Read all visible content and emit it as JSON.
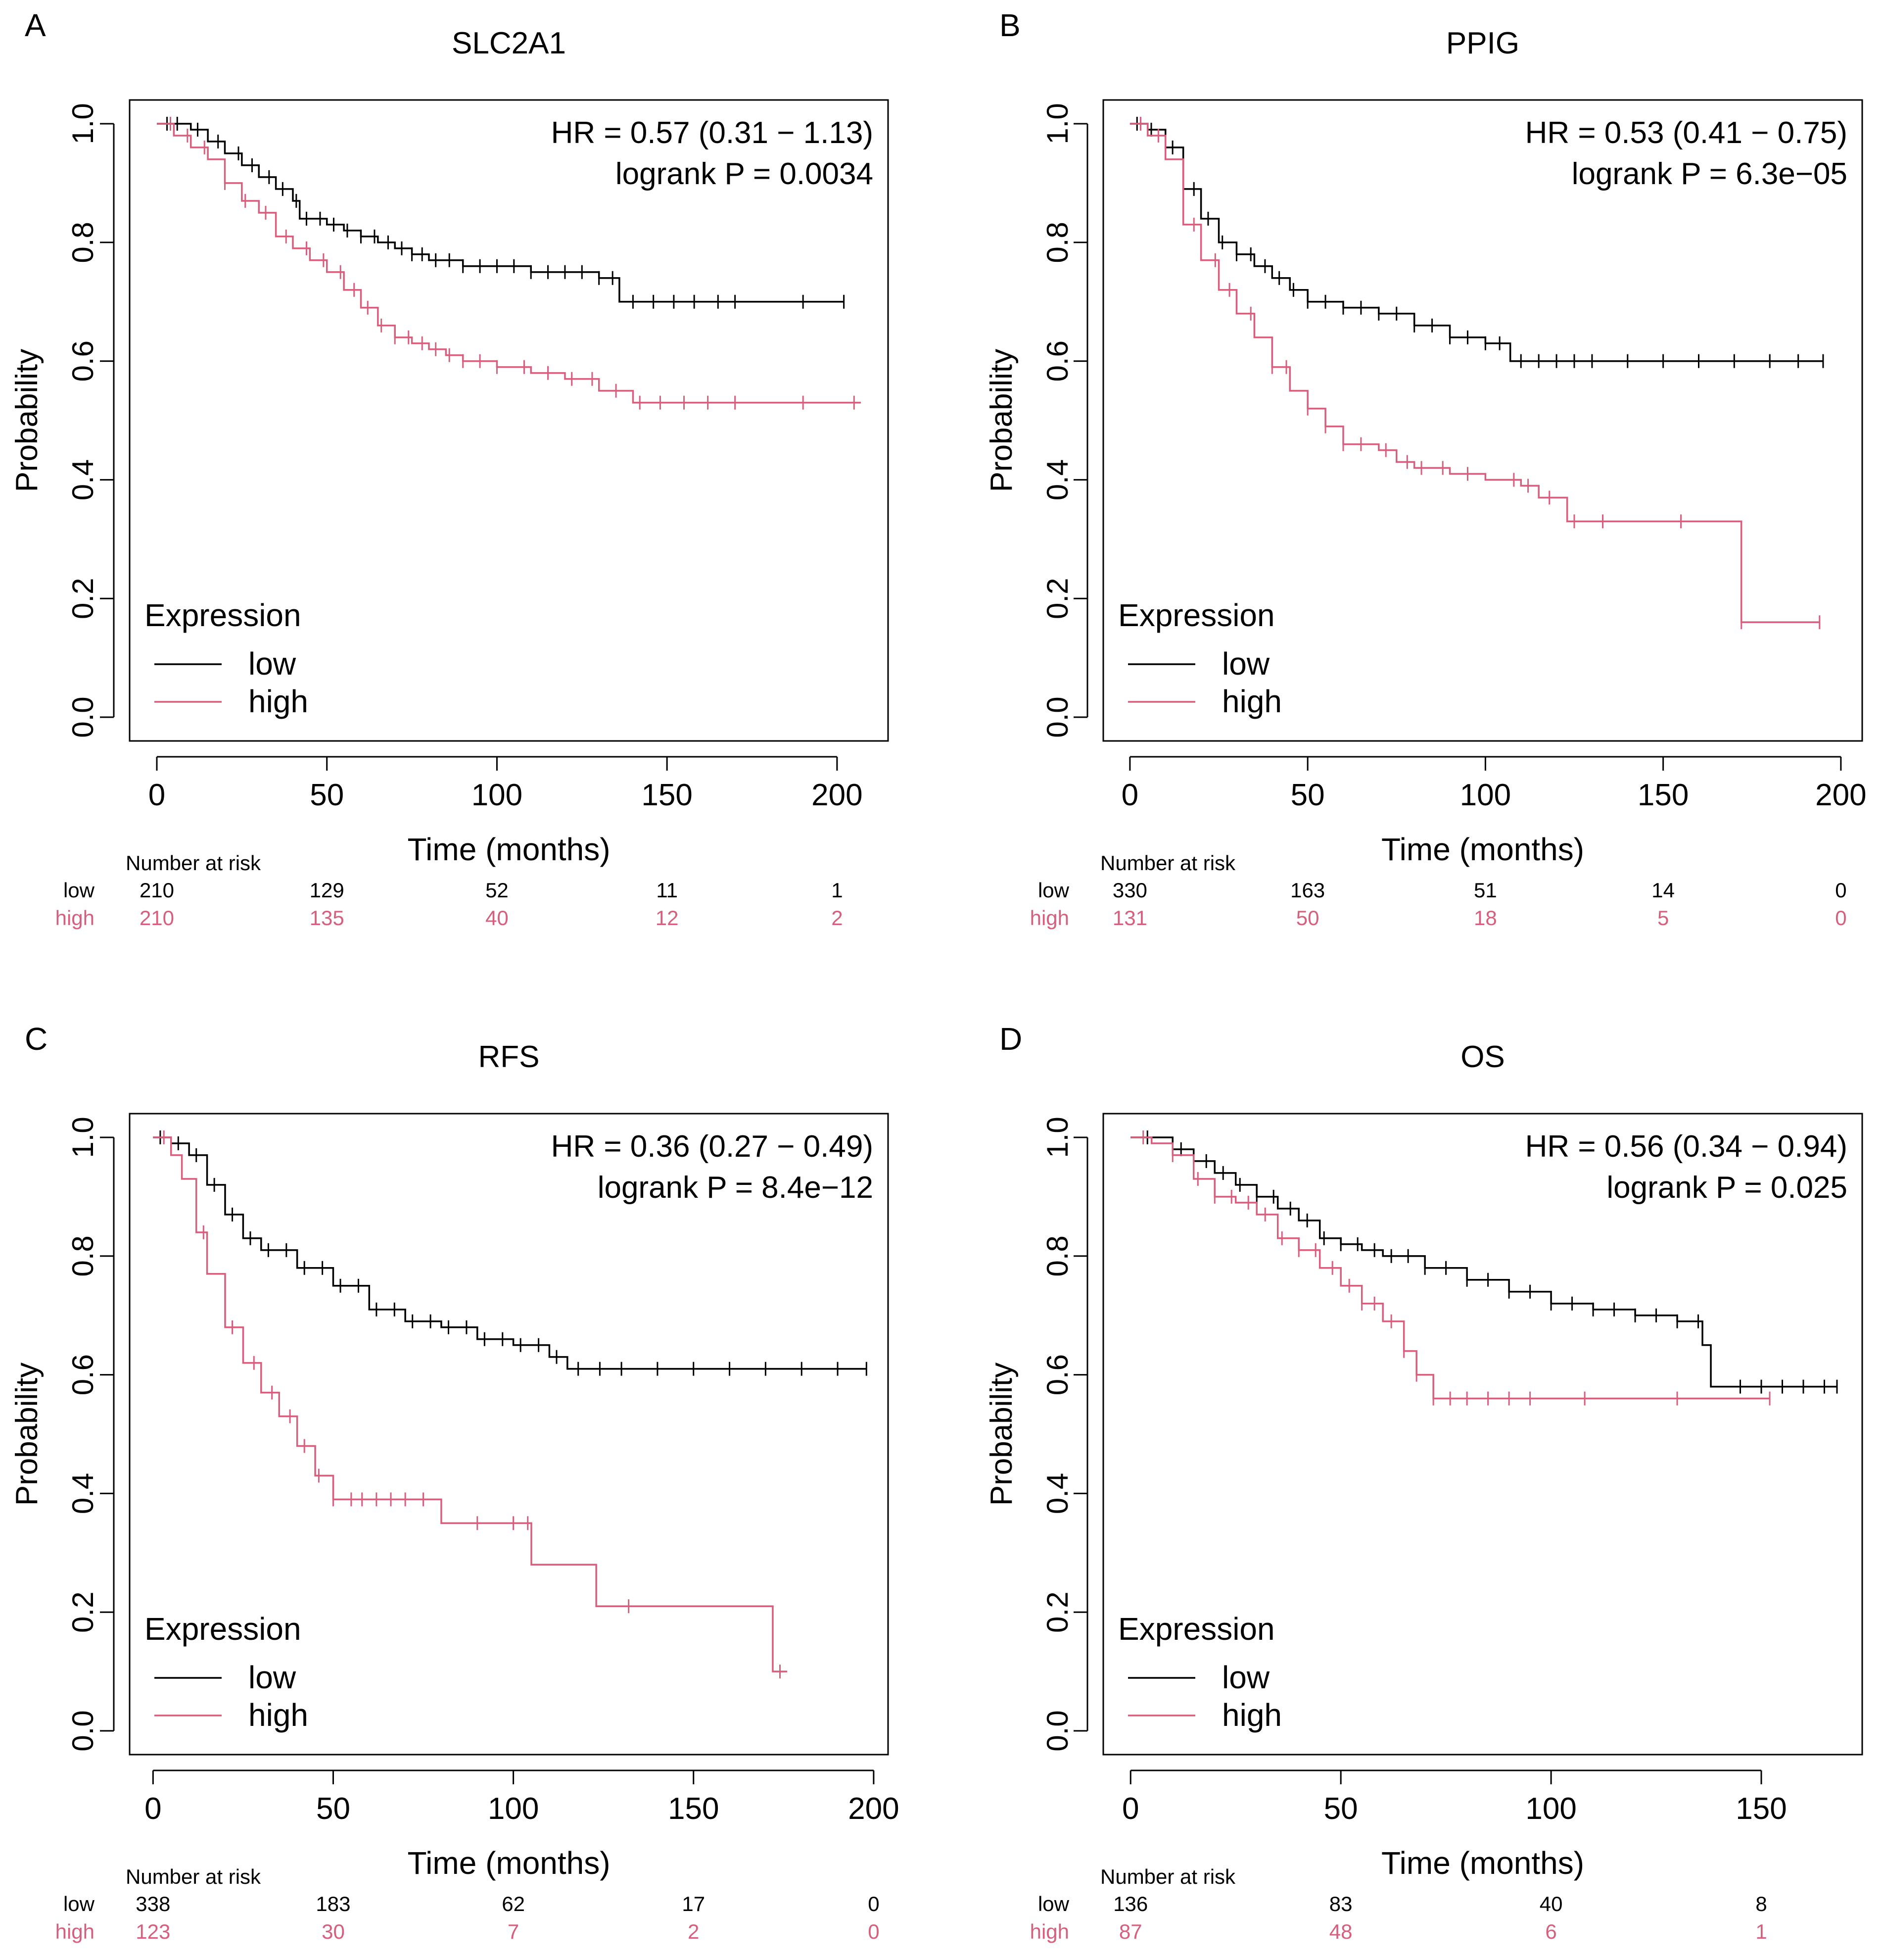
{
  "figure": {
    "colors": {
      "low": "#000000",
      "high": "#d5607e",
      "axis": "#000000"
    },
    "number_at_risk_label": "Number at risk",
    "legend_title": "Expression",
    "legend_low": "low",
    "legend_high": "high"
  },
  "chart_data": [
    {
      "type": "line",
      "panel_label": "A",
      "title": "SLC2A1",
      "xlabel": "Time (months)",
      "ylabel": "Probability",
      "xlim": [
        -8,
        215
      ],
      "ylim": [
        -0.04,
        1.04
      ],
      "x_ticks": [
        0,
        50,
        100,
        150,
        200
      ],
      "x_tick_labels": [
        "0",
        "50",
        "100",
        "150",
        "200"
      ],
      "y_ticks": [
        0.0,
        0.2,
        0.4,
        0.6,
        0.8,
        1.0
      ],
      "y_tick_labels": [
        "0.0",
        "0.2",
        "0.4",
        "0.6",
        "0.8",
        "1.0"
      ],
      "hr_text": "HR = 0.57 (0.31 − 1.13)",
      "p_text": "logrank P = 0.0034",
      "series": [
        {
          "name": "low",
          "color": "#000000",
          "x": [
            0,
            5,
            10,
            15,
            20,
            25,
            30,
            35,
            40,
            42,
            50,
            55,
            60,
            65,
            70,
            75,
            80,
            90,
            100,
            110,
            120,
            130,
            136,
            140,
            150,
            160,
            170,
            180,
            190,
            202
          ],
          "y": [
            1.0,
            1.0,
            0.99,
            0.97,
            0.95,
            0.93,
            0.91,
            0.89,
            0.87,
            0.84,
            0.83,
            0.82,
            0.81,
            0.8,
            0.79,
            0.78,
            0.77,
            0.76,
            0.76,
            0.75,
            0.75,
            0.74,
            0.7,
            0.7,
            0.7,
            0.7,
            0.7,
            0.7,
            0.7,
            0.7
          ],
          "censor_x": [
            3,
            6,
            12,
            18,
            24,
            28,
            33,
            37,
            41,
            44,
            48,
            52,
            56,
            60,
            64,
            68,
            72,
            75,
            78,
            82,
            86,
            90,
            95,
            100,
            105,
            110,
            115,
            120,
            125,
            130,
            134,
            140,
            146,
            152,
            158,
            165,
            170,
            190,
            202
          ]
        },
        {
          "name": "high",
          "color": "#d5607e",
          "x": [
            0,
            5,
            10,
            15,
            20,
            25,
            30,
            35,
            40,
            45,
            50,
            55,
            60,
            65,
            70,
            75,
            80,
            85,
            90,
            100,
            110,
            120,
            130,
            140,
            150,
            160,
            170,
            180,
            190,
            207
          ],
          "y": [
            1.0,
            0.98,
            0.96,
            0.94,
            0.9,
            0.87,
            0.85,
            0.81,
            0.79,
            0.77,
            0.75,
            0.72,
            0.69,
            0.66,
            0.64,
            0.63,
            0.62,
            0.61,
            0.6,
            0.59,
            0.58,
            0.57,
            0.55,
            0.53,
            0.53,
            0.53,
            0.53,
            0.53,
            0.53,
            0.53
          ],
          "censor_x": [
            4,
            9,
            14,
            20,
            26,
            32,
            38,
            44,
            49,
            54,
            58,
            62,
            66,
            70,
            74,
            78,
            82,
            86,
            90,
            95,
            100,
            108,
            115,
            122,
            128,
            135,
            142,
            148,
            155,
            162,
            170,
            190,
            205
          ]
        }
      ],
      "risk_table": {
        "x": [
          0,
          50,
          100,
          150,
          200
        ],
        "rows": [
          {
            "label": "low",
            "values": [
              "210",
              "129",
              "52",
              "11",
              "1"
            ]
          },
          {
            "label": "high",
            "values": [
              "210",
              "135",
              "40",
              "12",
              "2"
            ]
          }
        ]
      }
    },
    {
      "type": "line",
      "panel_label": "B",
      "title": "PPIG",
      "xlabel": "Time (months)",
      "ylabel": "Probability",
      "xlim": [
        -7.5,
        206
      ],
      "ylim": [
        -0.04,
        1.04
      ],
      "x_ticks": [
        0,
        50,
        100,
        150,
        200
      ],
      "x_tick_labels": [
        "0",
        "50",
        "100",
        "150",
        "200"
      ],
      "y_ticks": [
        0.0,
        0.2,
        0.4,
        0.6,
        0.8,
        1.0
      ],
      "y_tick_labels": [
        "0.0",
        "0.2",
        "0.4",
        "0.6",
        "0.8",
        "1.0"
      ],
      "hr_text": "HR = 0.53 (0.41 − 0.75)",
      "p_text": "logrank P = 6.3e−05",
      "series": [
        {
          "name": "low",
          "color": "#000000",
          "x": [
            0,
            5,
            10,
            15,
            20,
            25,
            30,
            35,
            40,
            45,
            50,
            60,
            70,
            80,
            90,
            100,
            107,
            120,
            140,
            160,
            180,
            195
          ],
          "y": [
            1.0,
            0.99,
            0.96,
            0.89,
            0.84,
            0.8,
            0.78,
            0.76,
            0.74,
            0.72,
            0.7,
            0.69,
            0.68,
            0.66,
            0.64,
            0.63,
            0.6,
            0.6,
            0.6,
            0.6,
            0.6,
            0.6
          ],
          "censor_x": [
            2,
            6,
            12,
            18,
            22,
            26,
            30,
            34,
            38,
            42,
            46,
            50,
            55,
            60,
            65,
            70,
            75,
            80,
            85,
            90,
            95,
            100,
            104,
            110,
            115,
            120,
            125,
            130,
            140,
            150,
            160,
            170,
            180,
            188,
            195
          ]
        },
        {
          "name": "high",
          "color": "#d5607e",
          "x": [
            0,
            5,
            10,
            15,
            20,
            25,
            30,
            35,
            40,
            45,
            50,
            55,
            60,
            70,
            75,
            80,
            90,
            100,
            110,
            115,
            123,
            140,
            150,
            160,
            172,
            194
          ],
          "y": [
            1.0,
            0.98,
            0.94,
            0.83,
            0.77,
            0.72,
            0.68,
            0.64,
            0.59,
            0.55,
            0.52,
            0.49,
            0.46,
            0.45,
            0.43,
            0.42,
            0.41,
            0.4,
            0.39,
            0.37,
            0.33,
            0.33,
            0.33,
            0.33,
            0.16,
            0.16
          ],
          "censor_x": [
            3,
            8,
            18,
            24,
            28,
            34,
            40,
            44,
            50,
            55,
            60,
            65,
            72,
            78,
            82,
            88,
            95,
            108,
            112,
            118,
            125,
            133,
            155,
            172,
            194
          ]
        }
      ],
      "risk_table": {
        "x": [
          0,
          50,
          100,
          150,
          200
        ],
        "rows": [
          {
            "label": "low",
            "values": [
              "330",
              "163",
              "51",
              "14",
              "0"
            ]
          },
          {
            "label": "high",
            "values": [
              "131",
              "50",
              "18",
              "5",
              "0"
            ]
          }
        ]
      }
    },
    {
      "type": "line",
      "panel_label": "C",
      "title": "RFS",
      "xlabel": "Time (months)",
      "ylabel": "Probability",
      "xlim": [
        -6.5,
        204
      ],
      "ylim": [
        -0.04,
        1.04
      ],
      "x_ticks": [
        0,
        50,
        100,
        150,
        200
      ],
      "x_tick_labels": [
        "0",
        "50",
        "100",
        "150",
        "200"
      ],
      "y_ticks": [
        0.0,
        0.2,
        0.4,
        0.6,
        0.8,
        1.0
      ],
      "y_tick_labels": [
        "0.0",
        "0.2",
        "0.4",
        "0.6",
        "0.8",
        "1.0"
      ],
      "hr_text": "HR = 0.36 (0.27 − 0.49)",
      "p_text": "logrank P = 8.4e−12",
      "series": [
        {
          "name": "low",
          "color": "#000000",
          "x": [
            0,
            5,
            10,
            15,
            20,
            25,
            30,
            40,
            50,
            60,
            70,
            80,
            90,
            100,
            110,
            115,
            120,
            140,
            160,
            180,
            198
          ],
          "y": [
            1.0,
            0.99,
            0.97,
            0.92,
            0.87,
            0.83,
            0.81,
            0.78,
            0.75,
            0.71,
            0.69,
            0.68,
            0.66,
            0.65,
            0.63,
            0.61,
            0.61,
            0.61,
            0.61,
            0.61,
            0.61
          ],
          "censor_x": [
            2,
            7,
            12,
            17,
            22,
            27,
            32,
            37,
            42,
            47,
            52,
            57,
            62,
            67,
            72,
            77,
            82,
            87,
            92,
            97,
            102,
            107,
            112,
            118,
            124,
            130,
            140,
            150,
            160,
            170,
            180,
            190,
            198
          ]
        },
        {
          "name": "high",
          "color": "#d5607e",
          "x": [
            0,
            5,
            8,
            12,
            15,
            20,
            25,
            30,
            35,
            40,
            45,
            50,
            60,
            70,
            80,
            90,
            100,
            105,
            115,
            123,
            140,
            155,
            172,
            176
          ],
          "y": [
            1.0,
            0.97,
            0.93,
            0.84,
            0.77,
            0.68,
            0.62,
            0.57,
            0.53,
            0.48,
            0.43,
            0.39,
            0.39,
            0.39,
            0.35,
            0.35,
            0.35,
            0.28,
            0.28,
            0.21,
            0.21,
            0.21,
            0.1,
            0.1
          ],
          "censor_x": [
            3,
            14,
            22,
            28,
            33,
            38,
            42,
            46,
            50,
            55,
            58,
            62,
            66,
            70,
            75,
            90,
            100,
            104,
            132,
            174
          ]
        }
      ],
      "risk_table": {
        "x": [
          0,
          50,
          100,
          150,
          200
        ],
        "rows": [
          {
            "label": "low",
            "values": [
              "338",
              "183",
              "62",
              "17",
              "0"
            ]
          },
          {
            "label": "high",
            "values": [
              "123",
              "30",
              "7",
              "2",
              "0"
            ]
          }
        ]
      }
    },
    {
      "type": "line",
      "panel_label": "D",
      "title": "OS",
      "xlabel": "Time (months)",
      "ylabel": "Probability",
      "xlim": [
        -6.5,
        174
      ],
      "ylim": [
        -0.04,
        1.04
      ],
      "x_ticks": [
        0,
        50,
        100,
        150
      ],
      "x_tick_labels": [
        "0",
        "50",
        "100",
        "150"
      ],
      "y_ticks": [
        0.0,
        0.2,
        0.4,
        0.6,
        0.8,
        1.0
      ],
      "y_tick_labels": [
        "0.0",
        "0.2",
        "0.4",
        "0.6",
        "0.8",
        "1.0"
      ],
      "hr_text": "HR = 0.56 (0.34 − 0.94)",
      "p_text": "logrank P = 0.025",
      "series": [
        {
          "name": "low",
          "color": "#000000",
          "x": [
            0,
            5,
            10,
            15,
            20,
            25,
            30,
            35,
            40,
            45,
            50,
            55,
            60,
            70,
            80,
            90,
            100,
            110,
            120,
            130,
            136,
            138,
            150,
            160,
            168
          ],
          "y": [
            1.0,
            1.0,
            0.98,
            0.96,
            0.94,
            0.92,
            0.9,
            0.88,
            0.86,
            0.83,
            0.82,
            0.81,
            0.8,
            0.78,
            0.76,
            0.74,
            0.72,
            0.71,
            0.7,
            0.69,
            0.65,
            0.58,
            0.58,
            0.58,
            0.58
          ],
          "censor_x": [
            4,
            12,
            18,
            22,
            26,
            30,
            34,
            38,
            42,
            46,
            50,
            54,
            58,
            62,
            66,
            70,
            75,
            80,
            85,
            90,
            95,
            100,
            105,
            110,
            115,
            120,
            125,
            130,
            135,
            145,
            150,
            155,
            160,
            165,
            168
          ]
        },
        {
          "name": "high",
          "color": "#d5607e",
          "x": [
            0,
            5,
            10,
            15,
            20,
            25,
            30,
            35,
            40,
            45,
            50,
            55,
            60,
            65,
            68,
            72,
            80,
            100,
            120,
            140,
            152
          ],
          "y": [
            1.0,
            0.99,
            0.97,
            0.93,
            0.9,
            0.89,
            0.87,
            0.83,
            0.81,
            0.78,
            0.75,
            0.72,
            0.69,
            0.64,
            0.6,
            0.56,
            0.56,
            0.56,
            0.56,
            0.56,
            0.56
          ],
          "censor_x": [
            3,
            10,
            16,
            20,
            24,
            28,
            32,
            36,
            40,
            44,
            48,
            52,
            55,
            58,
            62,
            65,
            68,
            72,
            76,
            80,
            85,
            90,
            95,
            108,
            130,
            152
          ]
        }
      ],
      "risk_table": {
        "x": [
          0,
          50,
          100,
          150
        ],
        "rows": [
          {
            "label": "low",
            "values": [
              "136",
              "83",
              "40",
              "8"
            ]
          },
          {
            "label": "high",
            "values": [
              "87",
              "48",
              "6",
              "1"
            ]
          }
        ]
      }
    }
  ]
}
